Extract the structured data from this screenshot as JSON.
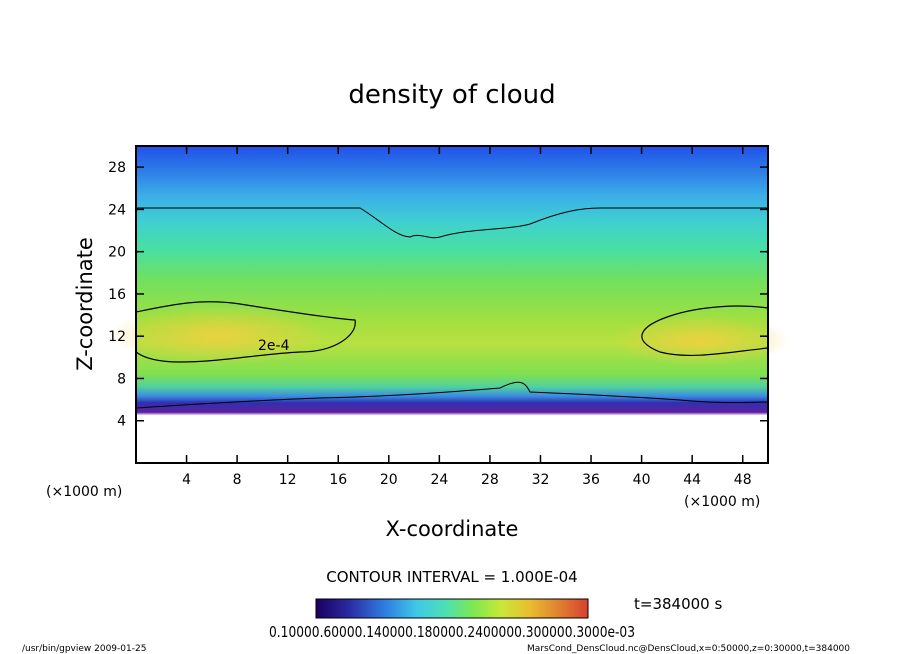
{
  "chart_data": {
    "type": "heatmap",
    "title": "density of cloud",
    "xlabel": "X-coordinate",
    "ylabel": "Z-coordinate",
    "x_unit": "(×1000 m)",
    "z_unit": "(×1000 m)",
    "xlim": [
      0,
      50
    ],
    "ylim": [
      0,
      30
    ],
    "x_ticks": [
      4,
      8,
      12,
      16,
      20,
      24,
      28,
      32,
      36,
      40,
      44,
      48
    ],
    "y_ticks": [
      4,
      8,
      12,
      16,
      20,
      24,
      28
    ],
    "grid": false,
    "contour_interval_text": "CONTOUR INTERVAL = 1.000E-04",
    "contour_label": "2e-4",
    "time_text": "t=384000 s",
    "colorbar_labels": "0.10000.60000.140000.180000.2400000.300000.3000e-03",
    "colorbar_colors": [
      "#1a0060",
      "#2a2aa0",
      "#2e7be0",
      "#3ec8e8",
      "#4ee0b0",
      "#7ee850",
      "#c8e838",
      "#e8c030",
      "#e08830",
      "#d84030"
    ]
  },
  "footer": {
    "left": "/usr/bin/gpview   2009-01-25",
    "right": "MarsCond_DensCloud.nc@DensCloud,x=0:50000,z=0:30000,t=384000"
  }
}
